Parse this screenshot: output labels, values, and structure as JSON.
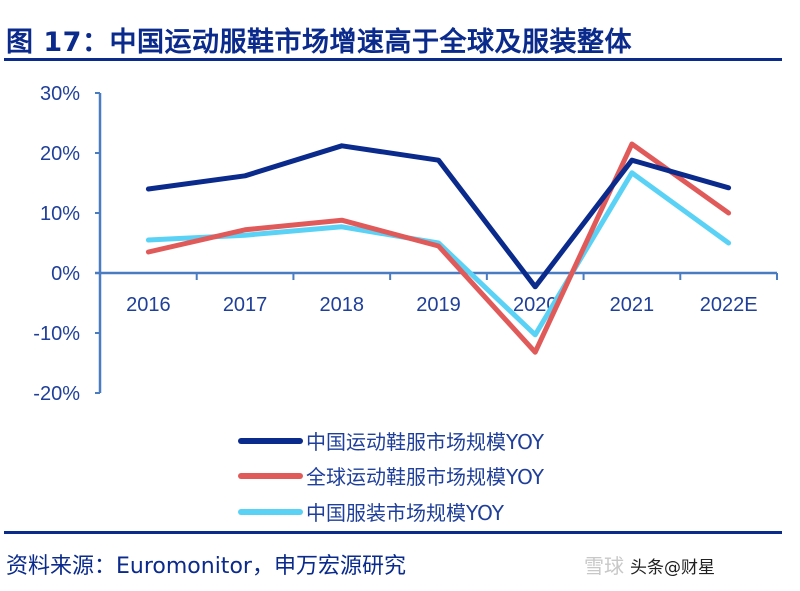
{
  "header": {
    "title": "图 17：中国运动服鞋市场增速高于全球及服装整体"
  },
  "footer": {
    "source": "资料来源：Euromonitor，申万宏源研究",
    "watermark": "雪球",
    "watermark_user": "头条@财星"
  },
  "colors": {
    "title": "#0a2a8c",
    "axis": "#4a7cc2",
    "china_sports": "#0a2a8c",
    "global_sports": "#e15a5a",
    "china_apparel": "#5ad2f5"
  },
  "chart_data": {
    "type": "line",
    "title": "图 17：中国运动服鞋市场增速高于全球及服装整体",
    "xlabel": "",
    "ylabel": "",
    "categories": [
      "2016",
      "2017",
      "2018",
      "2019",
      "2020",
      "2021",
      "2022E"
    ],
    "yticks": [
      "30%",
      "20%",
      "10%",
      "0%",
      "-10%",
      "-20%"
    ],
    "ylim": [
      -20,
      30
    ],
    "grid": false,
    "legend_position": "bottom",
    "series": [
      {
        "name": "中国运动鞋服市场规模YOY",
        "color": "#0a2a8c",
        "values": [
          14.0,
          16.2,
          21.2,
          18.8,
          -2.3,
          18.8,
          14.2
        ]
      },
      {
        "name": "全球运动鞋服市场规模YOY",
        "color": "#e15a5a",
        "values": [
          3.5,
          7.2,
          8.8,
          4.5,
          -13.2,
          21.5,
          10.0
        ]
      },
      {
        "name": "中国服装市场规模YOY",
        "color": "#5ad2f5",
        "values": [
          5.5,
          6.3,
          7.7,
          5.0,
          -10.3,
          16.7,
          5.0
        ]
      }
    ]
  }
}
